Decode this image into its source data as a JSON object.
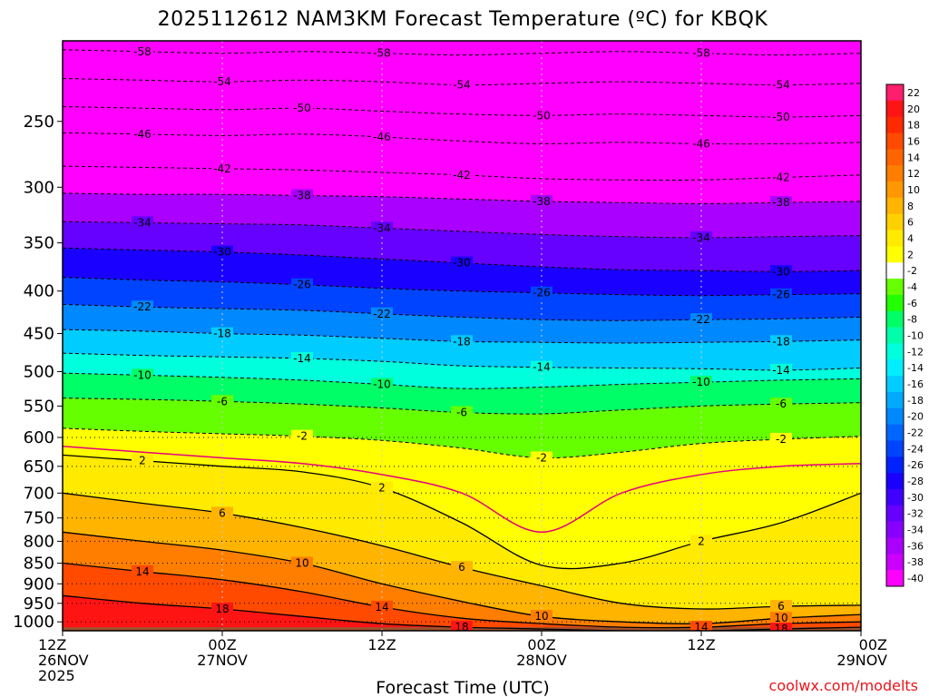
{
  "chart_data": {
    "type": "heatmap",
    "title": "2025112612 NAM3KM Forecast Temperature (ºC) for KBQK",
    "xlabel": "Forecast Time (UTC)",
    "ylabel": "",
    "x_ticks": [
      {
        "hour": 0,
        "line1": "12Z",
        "line2": "26NOV",
        "line3": "2025"
      },
      {
        "hour": 12,
        "line1": "00Z",
        "line2": "27NOV",
        "line3": ""
      },
      {
        "hour": 24,
        "line1": "12Z",
        "line2": "",
        "line3": ""
      },
      {
        "hour": 36,
        "line1": "00Z",
        "line2": "28NOV",
        "line3": ""
      },
      {
        "hour": 48,
        "line1": "12Z",
        "line2": "",
        "line3": ""
      },
      {
        "hour": 60,
        "line1": "00Z",
        "line2": "29NOV",
        "line3": ""
      }
    ],
    "xlim": [
      0,
      60
    ],
    "ylim": [
      1025,
      200
    ],
    "y_scale": "log-pressure",
    "y_ticks": [
      250,
      300,
      350,
      400,
      450,
      500,
      550,
      600,
      650,
      700,
      750,
      800,
      850,
      900,
      950,
      1000
    ],
    "colorbar_levels": [
      22,
      20,
      18,
      16,
      14,
      12,
      10,
      8,
      6,
      4,
      2,
      -2,
      -4,
      -6,
      -8,
      -10,
      -12,
      -14,
      -16,
      -18,
      -20,
      -22,
      -24,
      -26,
      -28,
      -30,
      -32,
      -34,
      -36,
      -38,
      -40
    ],
    "colorbar_colors": [
      "#ff1e6e",
      "#ff1414",
      "#ff2a00",
      "#ff4a00",
      "#ff6400",
      "#ff7e00",
      "#ff9800",
      "#ffb400",
      "#ffd000",
      "#ffea00",
      "#ffff00",
      "#ffffff",
      "#66ff00",
      "#22ff00",
      "#00ff66",
      "#00ffaa",
      "#00ffdd",
      "#00eeff",
      "#00ccff",
      "#00aaff",
      "#0088ff",
      "#0066ff",
      "#0044ff",
      "#0022ff",
      "#1a00ff",
      "#4000ff",
      "#6600ff",
      "#8800ff",
      "#aa00ff",
      "#cc00ff",
      "#ff00ff"
    ],
    "isotherms": [
      {
        "value": -58,
        "p": [
          205,
          206,
          207,
          206,
          207,
          208,
          207,
          206,
          207,
          208,
          207
        ]
      },
      {
        "value": -54,
        "p": [
          222,
          223,
          224,
          223,
          224,
          226,
          225,
          224,
          225,
          226,
          225
        ]
      },
      {
        "value": -50,
        "p": [
          240,
          241,
          242,
          241,
          243,
          245,
          246,
          245,
          246,
          247,
          246
        ]
      },
      {
        "value": -46,
        "p": [
          258,
          259,
          260,
          259,
          261,
          264,
          266,
          265,
          266,
          266,
          265
        ]
      },
      {
        "value": -42,
        "p": [
          283,
          284,
          285,
          286,
          288,
          290,
          293,
          294,
          294,
          292,
          290
        ]
      },
      {
        "value": -38,
        "p": [
          305,
          306,
          306,
          307,
          308,
          310,
          312,
          313,
          314,
          313,
          312
        ]
      },
      {
        "value": -34,
        "p": [
          330,
          331,
          332,
          333,
          336,
          339,
          342,
          344,
          345,
          344,
          343
        ]
      },
      {
        "value": -30,
        "p": [
          355,
          357,
          359,
          362,
          366,
          370,
          374,
          377,
          378,
          379,
          378
        ]
      },
      {
        "value": -26,
        "p": [
          385,
          388,
          390,
          393,
          397,
          400,
          402,
          404,
          405,
          404,
          403
        ]
      },
      {
        "value": -22,
        "p": [
          415,
          418,
          420,
          422,
          426,
          430,
          433,
          434,
          433,
          432,
          430
        ]
      },
      {
        "value": -18,
        "p": [
          445,
          447,
          450,
          452,
          456,
          460,
          461,
          462,
          461,
          460,
          458
        ]
      },
      {
        "value": -14,
        "p": [
          475,
          478,
          480,
          482,
          486,
          492,
          494,
          495,
          496,
          498,
          495
        ]
      },
      {
        "value": -10,
        "p": [
          502,
          505,
          508,
          512,
          518,
          524,
          522,
          518,
          515,
          512,
          510
        ]
      },
      {
        "value": -6,
        "p": [
          538,
          540,
          543,
          547,
          553,
          560,
          562,
          556,
          550,
          547,
          545
        ]
      },
      {
        "value": -2,
        "p": [
          585,
          590,
          594,
          598,
          605,
          618,
          635,
          625,
          610,
          603,
          598
        ]
      },
      {
        "value": 2,
        "p": [
          630,
          640,
          650,
          660,
          690,
          760,
          855,
          850,
          800,
          760,
          700
        ]
      },
      {
        "value": 6,
        "p": [
          700,
          720,
          740,
          770,
          810,
          860,
          905,
          950,
          965,
          958,
          955
        ]
      },
      {
        "value": 10,
        "p": [
          780,
          800,
          820,
          850,
          900,
          945,
          985,
          1000,
          1005,
          990,
          980
        ]
      },
      {
        "value": 14,
        "p": [
          850,
          870,
          890,
          920,
          960,
          990,
          1005,
          1015,
          1015,
          1005,
          1000
        ]
      },
      {
        "value": 18,
        "p": [
          930,
          950,
          965,
          985,
          1005,
          1015,
          1020,
          1025,
          1025,
          1020,
          1015
        ]
      }
    ],
    "melting_line": {
      "value": 0,
      "p": [
        615,
        625,
        635,
        645,
        665,
        700,
        780,
        700,
        665,
        650,
        645
      ]
    }
  },
  "credit": "coolwx.com/modelts"
}
